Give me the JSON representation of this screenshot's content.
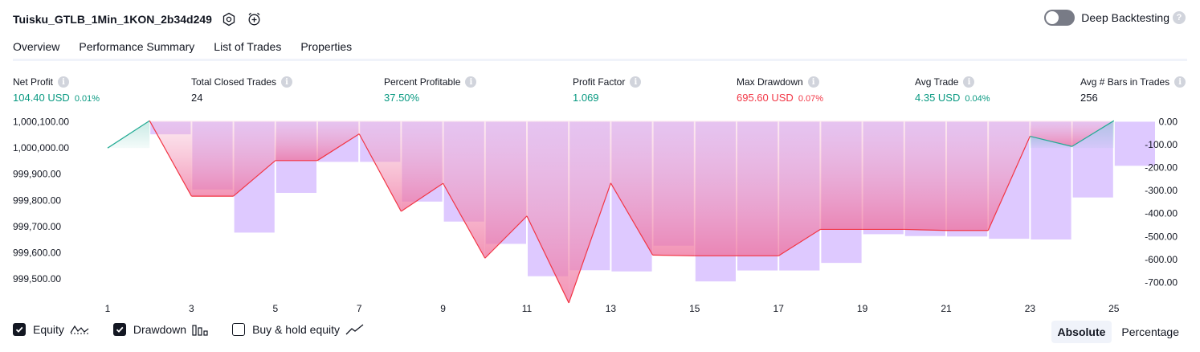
{
  "header": {
    "title": "Tuisku_GTLB_1Min_1KON_2b34d249",
    "deep_label": "Deep Backtesting",
    "help_glyph": "?"
  },
  "tabs": [
    {
      "label": "Overview"
    },
    {
      "label": "Performance Summary"
    },
    {
      "label": "List of Trades"
    },
    {
      "label": "Properties"
    }
  ],
  "stats": [
    {
      "label": "Net Profit",
      "value": "104.40 USD",
      "pct": "0.01%",
      "color": "#089981"
    },
    {
      "label": "Total Closed Trades",
      "value": "24",
      "pct": "",
      "color": "#131722"
    },
    {
      "label": "Percent Profitable",
      "value": "37.50%",
      "pct": "",
      "color": "#089981"
    },
    {
      "label": "Profit Factor",
      "value": "1.069",
      "pct": "",
      "color": "#089981"
    },
    {
      "label": "Max Drawdown",
      "value": "695.60 USD",
      "pct": "0.07%",
      "color": "#f23645"
    },
    {
      "label": "Avg Trade",
      "value": "4.35 USD",
      "pct": "0.04%",
      "color": "#089981"
    },
    {
      "label": "Avg # Bars in Trades",
      "value": "256",
      "pct": "",
      "color": "#131722"
    }
  ],
  "info_glyph": "i",
  "chart_data": {
    "type": "line",
    "x": [
      1,
      2,
      3,
      4,
      5,
      6,
      7,
      8,
      9,
      10,
      11,
      12,
      13,
      14,
      15,
      16,
      17,
      18,
      19,
      20,
      21,
      22,
      23,
      24,
      25
    ],
    "x_ticks": [
      "1",
      "3",
      "5",
      "7",
      "9",
      "11",
      "13",
      "15",
      "17",
      "19",
      "21",
      "23",
      "25"
    ],
    "left_axis": {
      "ticks": [
        "1,000,100.00",
        "1,000,000.00",
        "999,900.00",
        "999,800.00",
        "999,700.00",
        "999,600.00",
        "999,500.00"
      ],
      "range": [
        999460,
        1000105
      ]
    },
    "right_axis": {
      "ticks": [
        "0.00",
        "-100.00",
        "-200.00",
        "-300.00",
        "-400.00",
        "-500.00",
        "-600.00",
        "-700.00"
      ],
      "range": [
        -730,
        5
      ]
    },
    "series": [
      {
        "name": "Equity",
        "color_up": "#22ab94",
        "color_down": "#f23645",
        "values": [
          1000000,
          1000104.4,
          999816,
          999816,
          999952,
          999952,
          1000054,
          999758,
          999865,
          999579,
          999740,
          999408,
          999866,
          999591,
          999588,
          999588,
          999588,
          999689,
          999689,
          999689,
          999685,
          999685,
          1000045,
          1000006,
          1000104.4
        ]
      },
      {
        "name": "Drawdown",
        "color": "#d8bfff",
        "values": [
          0,
          -55,
          -295,
          -483,
          -310,
          -175,
          -175,
          -348,
          -435,
          -532,
          -673,
          -647,
          -652,
          -540,
          -695.6,
          -648,
          -648,
          -615,
          -490,
          -498,
          -500,
          -510,
          -513,
          -330,
          -192
        ]
      }
    ]
  },
  "footer": {
    "legend": [
      {
        "label": "Equity",
        "checked": true,
        "icon": "equity-line-icon"
      },
      {
        "label": "Drawdown",
        "checked": true,
        "icon": "drawdown-bars-icon"
      },
      {
        "label": "Buy & hold equity",
        "checked": false,
        "icon": "buy-hold-line-icon"
      }
    ],
    "modes": [
      {
        "label": "Absolute",
        "active": true
      },
      {
        "label": "Percentage",
        "active": false
      }
    ]
  }
}
